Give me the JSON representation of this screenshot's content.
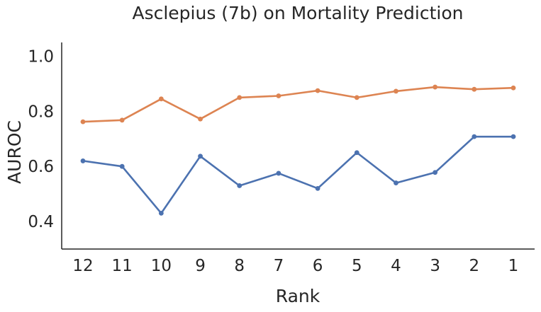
{
  "chart_data": {
    "type": "line",
    "title": "Asclepius (7b) on Mortality Prediction",
    "xlabel": "Rank",
    "ylabel": "AUROC",
    "categories": [
      "12",
      "11",
      "10",
      "9",
      "8",
      "7",
      "6",
      "5",
      "4",
      "3",
      "2",
      "1"
    ],
    "ylim": [
      0.3,
      1.05
    ],
    "yticks": [
      "0.4",
      "0.6",
      "0.8",
      "1.0"
    ],
    "grid": false,
    "series": [
      {
        "color": "#dd8452",
        "values": [
          0.762,
          0.768,
          0.845,
          0.772,
          0.85,
          0.856,
          0.875,
          0.85,
          0.873,
          0.888,
          0.88,
          0.885
        ]
      },
      {
        "color": "#4c72b0",
        "values": [
          0.62,
          0.6,
          0.43,
          0.637,
          0.53,
          0.575,
          0.52,
          0.65,
          0.54,
          0.578,
          0.708,
          0.708
        ]
      }
    ]
  }
}
